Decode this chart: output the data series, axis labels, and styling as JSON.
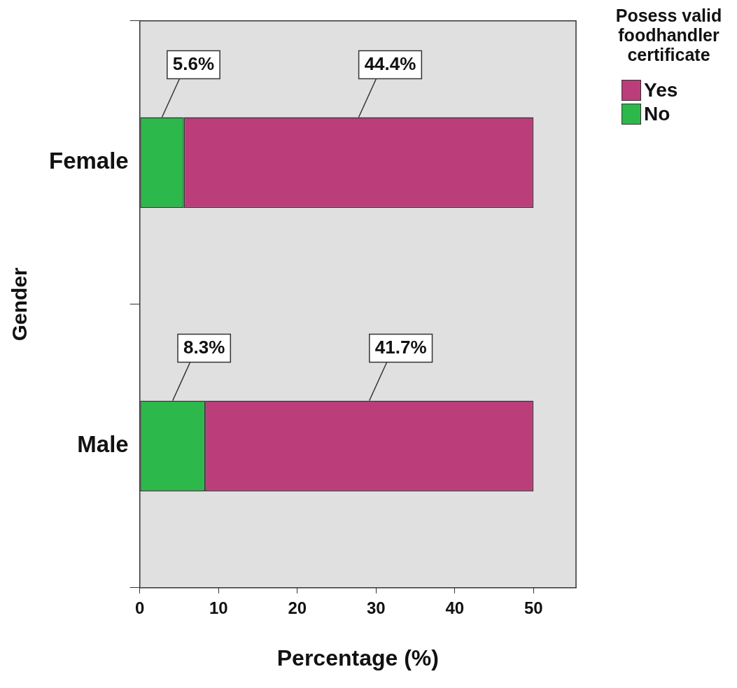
{
  "chart_data": {
    "type": "bar",
    "orientation": "horizontal",
    "stacked": true,
    "xlabel": "Percentage (%)",
    "ylabel": "Gender",
    "legend_title": "Posess valid foodhandler certificate",
    "legend": "right",
    "grid": false,
    "categories": [
      "Female",
      "Male"
    ],
    "xlim": [
      0,
      55.4
    ],
    "xticks": [
      0,
      10,
      20,
      30,
      40,
      50
    ],
    "series": [
      {
        "name": "No",
        "color": "#2db84b",
        "values": [
          5.6,
          8.3
        ],
        "value_labels": [
          "5.6%",
          "8.3%"
        ]
      },
      {
        "name": "Yes",
        "color": "#bb3d7a",
        "values": [
          44.4,
          41.7
        ],
        "value_labels": [
          "44.4%",
          "41.7%"
        ]
      }
    ]
  }
}
